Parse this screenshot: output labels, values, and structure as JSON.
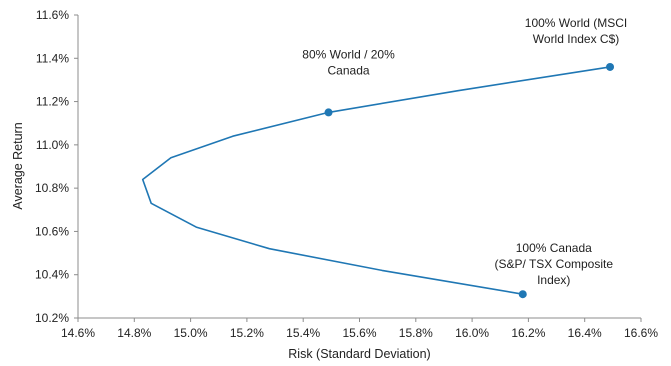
{
  "chart_data": {
    "type": "line",
    "title": "",
    "xlabel": "Risk (Standard Deviation)",
    "ylabel": "Average Return",
    "xlim": [
      14.6,
      16.6
    ],
    "ylim": [
      10.2,
      11.6
    ],
    "x_ticks": [
      14.6,
      14.8,
      15.0,
      15.2,
      15.4,
      15.6,
      15.8,
      16.0,
      16.2,
      16.4,
      16.6
    ],
    "y_ticks": [
      10.2,
      10.4,
      10.6,
      10.8,
      11.0,
      11.2,
      11.4,
      11.6
    ],
    "x_tick_labels": [
      "14.6%",
      "14.8%",
      "15.0%",
      "15.2%",
      "15.4%",
      "15.6%",
      "15.8%",
      "16.0%",
      "16.2%",
      "16.4%",
      "16.6%"
    ],
    "y_tick_labels": [
      "10.2%",
      "10.4%",
      "10.6%",
      "10.8%",
      "11.0%",
      "11.2%",
      "11.4%",
      "11.6%"
    ],
    "grid": false,
    "legend": "none",
    "color": "#1f77b4",
    "series": [
      {
        "x": [
          16.18,
          15.68,
          15.28,
          15.02,
          14.86,
          14.83,
          14.93,
          15.15,
          15.49,
          15.95,
          16.49
        ],
        "y": [
          10.31,
          10.42,
          10.52,
          10.62,
          10.73,
          10.84,
          10.94,
          11.04,
          11.15,
          11.25,
          11.36
        ]
      }
    ],
    "highlighted_points": [
      {
        "x": 16.49,
        "y": 11.36,
        "label_lines": [
          "100% World (MSCI",
          "World Index C$)"
        ]
      },
      {
        "x": 15.49,
        "y": 11.15,
        "label_lines": [
          "80% World /  20%",
          "Canada"
        ]
      },
      {
        "x": 16.18,
        "y": 10.31,
        "label_lines": [
          "100% Canada",
          "(S&P/ TSX Composite",
          "Index)"
        ]
      }
    ]
  }
}
